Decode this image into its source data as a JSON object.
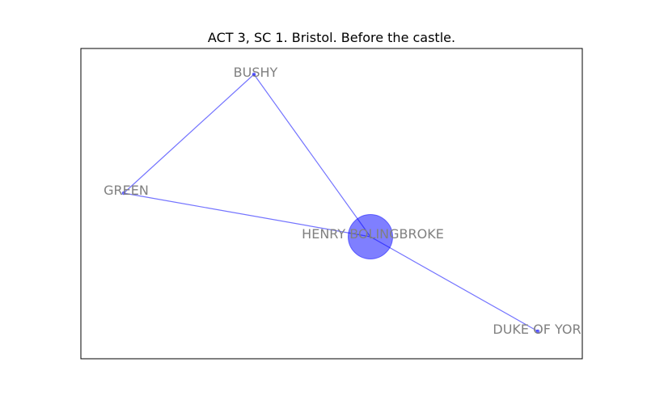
{
  "title": "ACT 3, SC 1. Bristol. Before the castle.",
  "colors": {
    "node": "#0000ff",
    "edge": "#0000ff",
    "label": "#808080",
    "frame": "#000000",
    "background": "#ffffff"
  },
  "graph": {
    "nodes": [
      {
        "id": "bushy",
        "label": "BUSHY",
        "weight": 1
      },
      {
        "id": "green",
        "label": "GREEN",
        "weight": 1
      },
      {
        "id": "henry",
        "label": "HENRY BOLINGBROKE",
        "weight": 3
      },
      {
        "id": "york",
        "label": "DUKE OF YOR",
        "weight": 1
      }
    ],
    "edges": [
      {
        "source": "bushy",
        "target": "green"
      },
      {
        "source": "bushy",
        "target": "henry"
      },
      {
        "source": "green",
        "target": "henry"
      },
      {
        "source": "henry",
        "target": "york"
      }
    ]
  }
}
